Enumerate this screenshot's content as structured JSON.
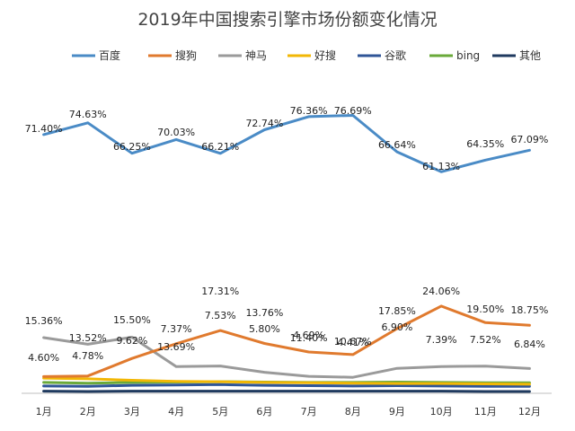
{
  "chart_data": {
    "type": "line",
    "title": "2019年中国搜索引擎市场份额变化情况",
    "xlabel": "",
    "ylabel": "",
    "categories": [
      "1月",
      "2月",
      "3月",
      "4月",
      "5月",
      "6月",
      "7月",
      "8月",
      "9月",
      "10月",
      "11月",
      "12月"
    ],
    "ylim": [
      0,
      85
    ],
    "grid": false,
    "legend_position": "top",
    "series": [
      {
        "name": "百度",
        "color": "#4a8bc6",
        "values": [
          71.4,
          74.63,
          66.25,
          70.03,
          66.21,
          72.74,
          76.36,
          76.69,
          66.64,
          61.13,
          64.35,
          67.09
        ],
        "labels": [
          "71.40%",
          "74.63%",
          "66.25%",
          "70.03%",
          "66.21%",
          "72.74%",
          "76.36%",
          "76.69%",
          "66.64%",
          "61.13%",
          "64.35%",
          "67.09%"
        ]
      },
      {
        "name": "搜狗",
        "color": "#e07a2e",
        "values": [
          4.6,
          4.78,
          9.62,
          13.69,
          17.31,
          13.76,
          11.4,
          10.67,
          17.85,
          24.06,
          19.5,
          18.75
        ],
        "labels": [
          "4.60%",
          "4.78%",
          "9.62%",
          "13.69%",
          "17.31%",
          "13.76%",
          "11.40%",
          "10.67%",
          "17.85%",
          "24.06%",
          "19.50%",
          "18.75%"
        ]
      },
      {
        "name": "神马",
        "color": "#9a9a9a",
        "values": [
          15.36,
          13.52,
          15.5,
          7.37,
          7.53,
          5.8,
          4.69,
          4.41,
          6.9,
          7.39,
          7.52,
          6.84
        ],
        "labels": [
          "15.36%",
          "13.52%",
          "15.50%",
          "7.37%",
          "7.53%",
          "5.80%",
          "4.69%",
          "4.41%",
          "6.90%",
          "7.39%",
          "7.52%",
          "6.84%"
        ]
      },
      {
        "name": "好搜",
        "color": "#f2b705",
        "values": [
          4.2,
          4.0,
          3.6,
          3.3,
          3.2,
          3.0,
          2.9,
          2.8,
          2.7,
          2.7,
          2.6,
          2.5
        ]
      },
      {
        "name": "谷歌",
        "color": "#2f5597",
        "values": [
          2.0,
          1.9,
          2.2,
          2.3,
          2.4,
          2.2,
          2.1,
          2.0,
          2.1,
          2.0,
          1.9,
          1.9
        ]
      },
      {
        "name": "bing",
        "color": "#6aaa3a",
        "values": [
          3.0,
          2.8,
          3.0,
          3.1,
          3.2,
          3.1,
          3.0,
          3.0,
          3.1,
          3.0,
          2.9,
          2.9
        ]
      },
      {
        "name": "其他",
        "color": "#1f3a5f",
        "values": [
          0.6,
          0.5,
          0.6,
          0.6,
          0.6,
          0.6,
          0.6,
          0.6,
          0.6,
          0.6,
          0.5,
          0.5
        ]
      }
    ]
  }
}
